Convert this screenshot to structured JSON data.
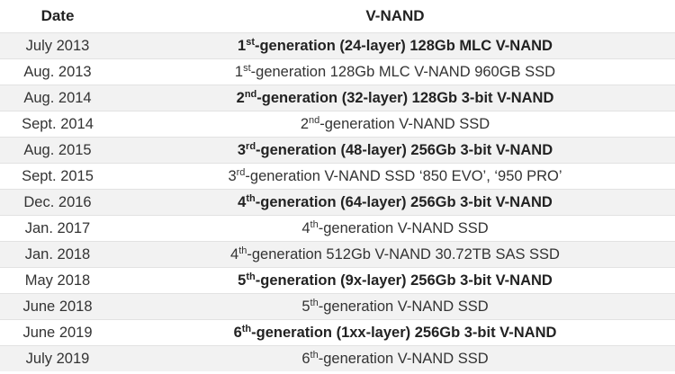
{
  "table": {
    "headers": {
      "date": "Date",
      "vnand": "V-NAND"
    },
    "rows": [
      {
        "date": "July 2013",
        "gen": "1",
        "sup": "st",
        "text": "-generation (24-layer) 128Gb MLC V-NAND",
        "bold": true
      },
      {
        "date": "Aug. 2013",
        "gen": "1",
        "sup": "st",
        "text": "-generation 128Gb MLC V-NAND 960GB SSD",
        "bold": false
      },
      {
        "date": "Aug. 2014",
        "gen": "2",
        "sup": "nd",
        "text": "-generation (32-layer) 128Gb 3-bit V-NAND",
        "bold": true
      },
      {
        "date": "Sept. 2014",
        "gen": "2",
        "sup": "nd",
        "text": "-generation V-NAND SSD",
        "bold": false
      },
      {
        "date": "Aug. 2015",
        "gen": "3",
        "sup": "rd",
        "text": "-generation (48-layer) 256Gb 3-bit V-NAND",
        "bold": true
      },
      {
        "date": "Sept. 2015",
        "gen": "3",
        "sup": "rd",
        "text": "-generation V-NAND SSD ‘850 EVO’, ‘950 PRO’",
        "bold": false
      },
      {
        "date": "Dec. 2016",
        "gen": "4",
        "sup": "th",
        "text": "-generation (64-layer) 256Gb 3-bit V-NAND",
        "bold": true
      },
      {
        "date": "Jan. 2017",
        "gen": "4",
        "sup": "th",
        "text": "-generation V-NAND SSD",
        "bold": false
      },
      {
        "date": "Jan. 2018",
        "gen": "4",
        "sup": "th",
        "text": "-generation 512Gb V-NAND 30.72TB SAS SSD",
        "bold": false
      },
      {
        "date": "May 2018",
        "gen": "5",
        "sup": "th",
        "text": "-generation (9x-layer) 256Gb 3-bit V-NAND",
        "bold": true
      },
      {
        "date": "June 2018",
        "gen": "5",
        "sup": "th",
        "text": "-generation V-NAND SSD",
        "bold": false
      },
      {
        "date": "June 2019",
        "gen": "6",
        "sup": "th",
        "text": "-generation (1xx-layer) 256Gb 3-bit V-NAND",
        "bold": true
      },
      {
        "date": "July 2019",
        "gen": "6",
        "sup": "th",
        "text": "-generation V-NAND SSD",
        "bold": false
      }
    ]
  }
}
